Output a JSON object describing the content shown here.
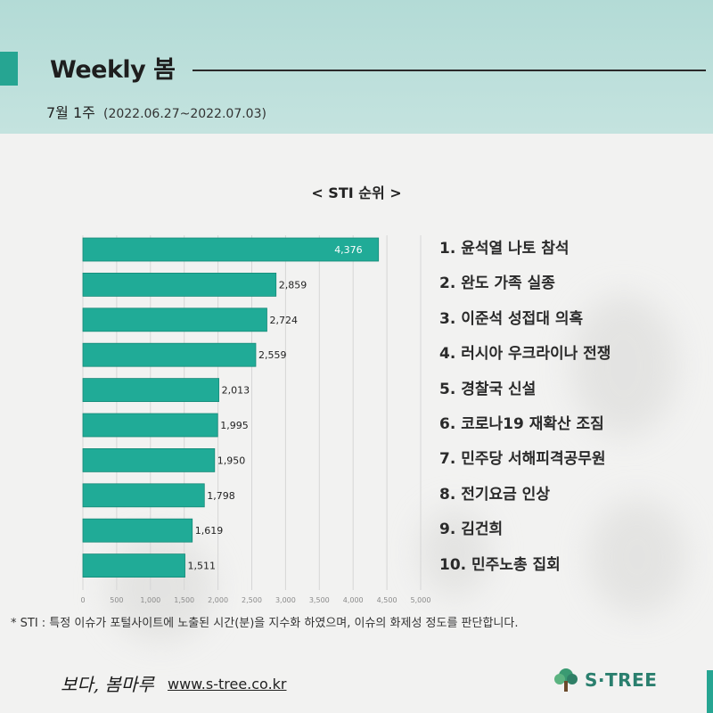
{
  "header": {
    "title": "Weekly 봄",
    "week": "7월 1주",
    "range": "(2022.06.27~2022.07.03)"
  },
  "chart_data": {
    "type": "bar",
    "orientation": "horizontal",
    "title": "< STI 순위 >",
    "categories": [
      "윤석열 나토 참석",
      "완도 가족 실종",
      "이준석 성접대 의혹",
      "러시아 우크라이나 전쟁",
      "경찰국 신설",
      "코로나19 재확산 조짐",
      "민주당 서해피격공무원",
      "전기요금 인상",
      "김건희",
      "민주노총 집회"
    ],
    "values": [
      4376,
      2859,
      2724,
      2559,
      2013,
      1995,
      1950,
      1798,
      1619,
      1511
    ],
    "value_labels": [
      "4,376",
      "2,859",
      "2,724",
      "2,559",
      "2,013",
      "1,995",
      "1,950",
      "1,798",
      "1,619",
      "1,511"
    ],
    "xlim": [
      0,
      5000
    ],
    "ticks": [
      "0",
      "500",
      "1,000",
      "1,500",
      "2,000",
      "2,500",
      "3,000",
      "3,500",
      "4,000",
      "4,500",
      "5,000"
    ],
    "bar_color": "#20ab97",
    "grid": true
  },
  "ranking": [
    "1. 윤석열 나토 참석",
    "2. 완도 가족 실종",
    "3. 이준석 성접대 의혹",
    "4. 러시아 우크라이나 전쟁",
    "5. 경찰국 신설",
    "6. 코로나19 재확산 조짐",
    "7. 민주당 서해피격공무원",
    "8. 전기요금 인상",
    "9. 김건희",
    "10. 민주노총 집회"
  ],
  "footnote": "* STI : 특정 이슈가 포털사이트에 노출된 시간(분)을 지수화 하였으며, 이슈의 화제성 정도를 판단합니다.",
  "footer": {
    "brand": "보다, 봄마루",
    "site": "www.s-tree.co.kr",
    "logo": "S·TREE",
    "logo_icon": "tree-icon"
  },
  "colors": {
    "accent": "#26a592",
    "header_bg": "#b3dbd6",
    "logo": "#2a7f6e"
  }
}
